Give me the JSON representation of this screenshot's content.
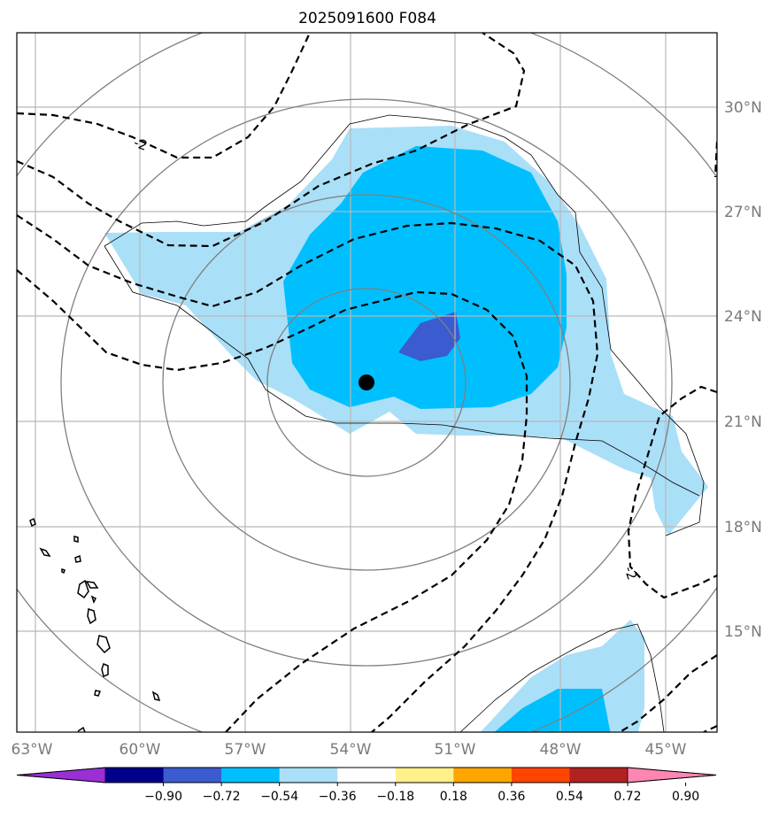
{
  "title": "2025091600 F084",
  "map": {
    "type": "map",
    "projection": "polar-stereographic",
    "longitude_ticks": [
      "63°W",
      "60°W",
      "57°W",
      "54°W",
      "51°W",
      "48°W",
      "45°W"
    ],
    "latitude_ticks": [
      "30°N",
      "27°N",
      "24°N",
      "21°N",
      "18°N",
      "15°N"
    ],
    "grid": true,
    "storm_center_marker": {
      "lon": -53.6,
      "lat": 22.3,
      "color": "#000000"
    },
    "dashed_contour_labels": [
      "-2",
      "-2",
      "-2"
    ],
    "shading_colors": {
      "light_blue": "#aadff8",
      "deep_sky_blue": "#00bfff",
      "royal_blue": "#3b5bd0"
    }
  },
  "colorbar": {
    "orientation": "horizontal",
    "extend": "both",
    "ticks": [
      "−0.90",
      "−0.72",
      "−0.54",
      "−0.36",
      "−0.18",
      "0.18",
      "0.36",
      "0.54",
      "0.72",
      "0.90"
    ],
    "colors": [
      "#9a2fd6",
      "#00008b",
      "#3b5bd0",
      "#00bfff",
      "#aadff8",
      "#ffffff",
      "#fff08a",
      "#ffa500",
      "#ff4500",
      "#b22222",
      "#ff85b3"
    ]
  }
}
